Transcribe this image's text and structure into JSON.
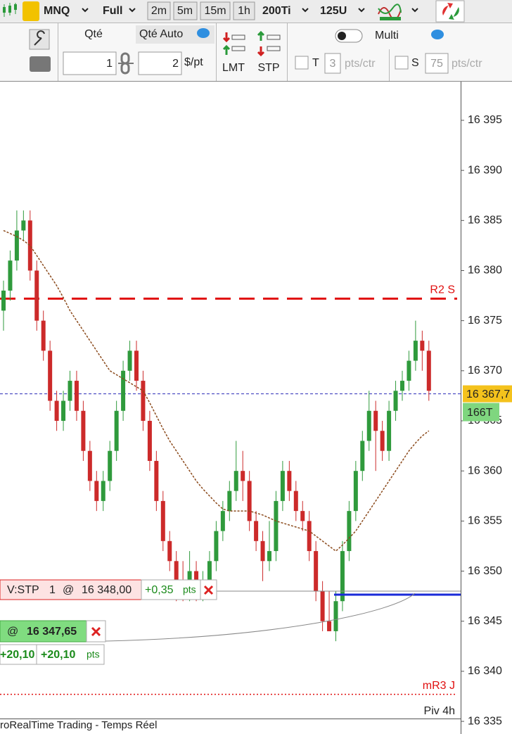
{
  "toolbar": {
    "instrument": "MNQ",
    "mode": "Full",
    "timeframes": [
      "2m",
      "5m",
      "15m",
      "1h"
    ],
    "ticks": "200Ti",
    "units": "125U"
  },
  "order_panel": {
    "qty_label": "Qté",
    "qty_auto": "Qté Auto",
    "qty": "1",
    "amount": "2",
    "amount_unit": "$/pt",
    "limit": "LMT",
    "stop": "STP",
    "multi": "Multi",
    "target_flag": "T",
    "target": "3",
    "target_unit": "pts/ctr",
    "stop_flag": "S",
    "stop_value": "75",
    "stop_unit": "pts/ctr"
  },
  "chart_data": {
    "type": "candlestick",
    "open": [
      16376,
      16378,
      16381,
      16384,
      16385,
      16380,
      16375,
      16372,
      16367,
      16365,
      16367,
      16369,
      16366,
      16362,
      16359,
      16357,
      16359,
      16362,
      16366,
      16370,
      16372,
      16369,
      16365,
      16361,
      16357,
      16353,
      16351,
      16349,
      16348,
      16350,
      16348,
      16349,
      16351,
      16354,
      16356,
      16358,
      16360,
      16359,
      16355,
      16353,
      16351,
      16352,
      16357,
      16360,
      16358,
      16356,
      16355,
      16352,
      16348,
      16345,
      16344,
      16347,
      16352,
      16356,
      16360,
      16363,
      16366,
      16364,
      16362,
      16366,
      16368,
      16369,
      16371,
      16373,
      16372
    ],
    "high": [
      16379,
      16382,
      16386,
      16386,
      16386,
      16381,
      16376,
      16373,
      16368,
      16368,
      16370,
      16370,
      16367,
      16363,
      16360,
      16360,
      16363,
      16367,
      16371,
      16373,
      16373,
      16370,
      16366,
      16362,
      16358,
      16354,
      16352,
      16351,
      16352,
      16351,
      16350,
      16352,
      16355,
      16357,
      16359,
      16363,
      16362,
      16360,
      16356,
      16354,
      16355,
      16358,
      16361,
      16361,
      16359,
      16357,
      16356,
      16353,
      16349,
      16348,
      16348,
      16353,
      16357,
      16361,
      16364,
      16368,
      16367,
      16365,
      16367,
      16369,
      16370,
      16372,
      16375,
      16374,
      16373
    ],
    "low": [
      16374,
      16377,
      16380,
      16383,
      16379,
      16374,
      16371,
      16366,
      16364,
      16364,
      16366,
      16365,
      16361,
      16358,
      16356,
      16356,
      16358,
      16361,
      16365,
      16369,
      16368,
      16364,
      16360,
      16356,
      16352,
      16350,
      16347,
      16347,
      16347,
      16347,
      16347,
      16348,
      16350,
      16353,
      16355,
      16357,
      16357,
      16354,
      16352,
      16349,
      16350,
      16351,
      16356,
      16357,
      16355,
      16354,
      16351,
      16347,
      16344,
      16344,
      16343,
      16346,
      16351,
      16355,
      16359,
      16362,
      16360,
      16361,
      16361,
      16365,
      16367,
      16368,
      16370,
      16370,
      16367
    ],
    "close": [
      16378,
      16381,
      16384,
      16385,
      16380,
      16375,
      16372,
      16367,
      16365,
      16367,
      16369,
      16366,
      16362,
      16359,
      16357,
      16359,
      16362,
      16366,
      16370,
      16372,
      16369,
      16365,
      16361,
      16357,
      16353,
      16351,
      16349,
      16348,
      16350,
      16348,
      16349,
      16351,
      16354,
      16356,
      16358,
      16360,
      16359,
      16355,
      16353,
      16351,
      16352,
      16357,
      16360,
      16358,
      16356,
      16355,
      16352,
      16348,
      16345,
      16344,
      16347,
      16352,
      16356,
      16360,
      16363,
      16366,
      16364,
      16362,
      16366,
      16368,
      16369,
      16371,
      16373,
      16372,
      16368
    ],
    "up_color": "#2f9a3c",
    "down_color": "#cc2a2a",
    "ma": {
      "color": "#8b4a1c",
      "values": [
        16384,
        16383.7,
        16383.4,
        16383,
        16382.5,
        16381.5,
        16380.5,
        16379.5,
        16378.5,
        16377.3,
        16376,
        16375,
        16374,
        16373,
        16372,
        16371,
        16370,
        16369.6,
        16369.2,
        16368.8,
        16368.4,
        16368,
        16366.8,
        16365.5,
        16364.2,
        16363,
        16362,
        16361,
        16360,
        16359,
        16358.2,
        16357.5,
        16356.8,
        16356.2,
        16356,
        16356,
        16356,
        16356,
        16355.8,
        16355.6,
        16355.3,
        16355,
        16354.8,
        16354.6,
        16354.4,
        16354.2,
        16354,
        16353.5,
        16353,
        16352.5,
        16352,
        16352.6,
        16353.3,
        16354,
        16355,
        16356,
        16357,
        16358,
        16359,
        16360,
        16361,
        16362,
        16362.8,
        16363.5,
        16364
      ]
    },
    "ylim": [
      16333.74,
      16398.86
    ],
    "yticks": [
      {
        "value": 16335,
        "label": "16 335"
      },
      {
        "value": 16340,
        "label": "16 340"
      },
      {
        "value": 16345,
        "label": "16 345"
      },
      {
        "value": 16350,
        "label": "16 350"
      },
      {
        "value": 16355,
        "label": "16 355"
      },
      {
        "value": 16360,
        "label": "16 360"
      },
      {
        "value": 16365,
        "label": "16 365"
      },
      {
        "value": 16370,
        "label": "16 370"
      },
      {
        "value": 16375,
        "label": "16 375"
      },
      {
        "value": 16380,
        "label": "16 380"
      },
      {
        "value": 16385,
        "label": "16 385"
      },
      {
        "value": 16390,
        "label": "16 390"
      },
      {
        "value": 16395,
        "label": "16 395"
      }
    ],
    "levels": [
      {
        "name": "R2 S",
        "value": 16377.2,
        "color": "#e01010",
        "style": "dashed"
      },
      {
        "name": "mR3 J",
        "value": 16337.7,
        "color": "#e01010",
        "style": "dotted"
      }
    ],
    "pivot_label": "Piv 4h",
    "last_price": {
      "value": 16367.7,
      "label": "16 367,7",
      "color": "#2a2ab8"
    },
    "volume_label": "166T",
    "stop_order": {
      "side": "V:STP",
      "qty": "1",
      "at": "@",
      "price": {
        "value": 16348,
        "label": "16 348,00"
      },
      "pnl": "+0,35",
      "unit": "pts"
    },
    "position": {
      "at": "@",
      "price": {
        "value": 16347.65,
        "label": "16 347,65"
      },
      "pnl": "+20,10",
      "pnl_pts": "+20,10",
      "unit": "pts"
    },
    "footer": "roRealTime Trading - Temps Réel"
  }
}
